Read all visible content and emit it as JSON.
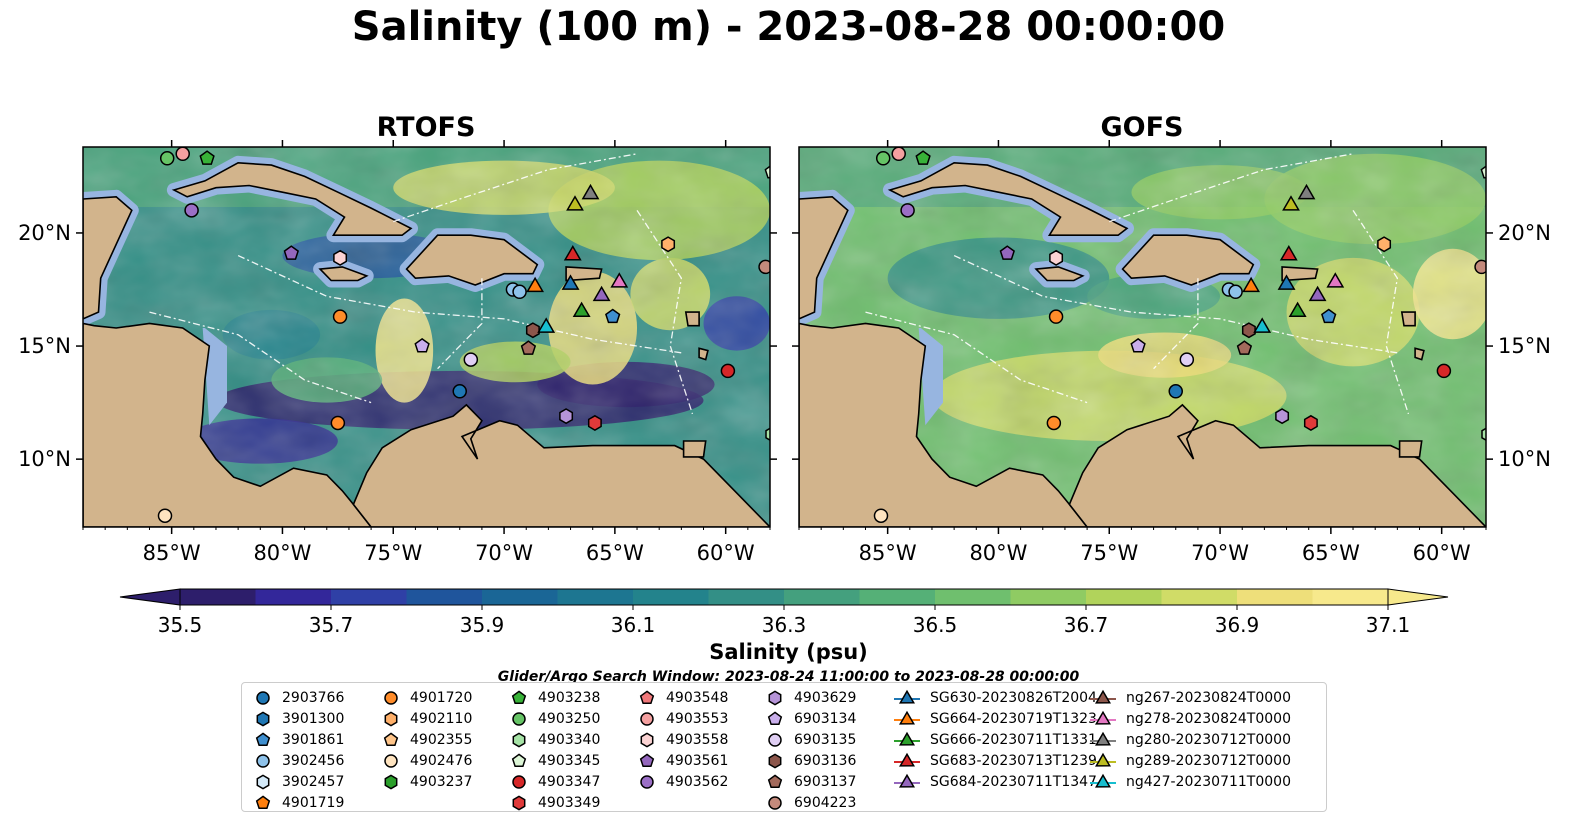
{
  "title": "Salinity (100 m) - 2023-08-28 00:00:00",
  "panels": [
    {
      "title": "RTOFS",
      "name": "rtofs"
    },
    {
      "title": "GOFS",
      "name": "gofs"
    }
  ],
  "map_extent": {
    "lon_min": -89,
    "lon_max": -58,
    "lat_min": 7,
    "lat_max": 23.8
  },
  "lon_ticks": [
    {
      "value": -85,
      "label": "85°W"
    },
    {
      "value": -80,
      "label": "80°W"
    },
    {
      "value": -75,
      "label": "75°W"
    },
    {
      "value": -70,
      "label": "70°W"
    },
    {
      "value": -65,
      "label": "65°W"
    },
    {
      "value": -60,
      "label": "60°W"
    }
  ],
  "lat_ticks": [
    {
      "value": 20,
      "label": "20°N"
    },
    {
      "value": 15,
      "label": "15°N"
    },
    {
      "value": 10,
      "label": "10°N"
    }
  ],
  "colorbar": {
    "label": "Salinity (psu)",
    "min": 35.5,
    "max": 37.1,
    "tick_labels": [
      "35.5",
      "35.7",
      "35.9",
      "36.1",
      "36.3",
      "36.5",
      "36.7",
      "36.9",
      "37.1"
    ],
    "colors": [
      "#2d1e6b",
      "#33279a",
      "#2f40a6",
      "#1f559c",
      "#1a6696",
      "#1d7691",
      "#23838c",
      "#338f86",
      "#44a07e",
      "#55b077",
      "#6fbf6e",
      "#8fcb63",
      "#b1d35b",
      "#d0dc67",
      "#eedf7a",
      "#f7e98c"
    ]
  },
  "colors": {
    "land": "#d2b48c",
    "shelf": "#97b5e0",
    "outline": "#000000"
  },
  "search_window": "Glider/Argo Search Window: 2023-08-24 11:00:00 to 2023-08-28 00:00:00",
  "legend": [
    {
      "label": "2903766",
      "marker": "circle",
      "color": "#1f77b4"
    },
    {
      "label": "3901300",
      "marker": "hexagon",
      "color": "#1f77b4"
    },
    {
      "label": "3901861",
      "marker": "pentagon",
      "color": "#3f8fcf"
    },
    {
      "label": "3902456",
      "marker": "circle",
      "color": "#8ec2ea"
    },
    {
      "label": "3902457",
      "marker": "hexagon",
      "color": "#d4eaf9"
    },
    {
      "label": "4901719",
      "marker": "pentagon",
      "color": "#ff7f0e"
    },
    {
      "label": "4901720",
      "marker": "circle",
      "color": "#ff8c2a"
    },
    {
      "label": "4902110",
      "marker": "hexagon",
      "color": "#ffb06a"
    },
    {
      "label": "4902355",
      "marker": "pentagon",
      "color": "#ffc58a"
    },
    {
      "label": "4902476",
      "marker": "circle",
      "color": "#ffe4c0"
    },
    {
      "label": "4903237",
      "marker": "hexagon",
      "color": "#2ca02c"
    },
    {
      "label": "4903238",
      "marker": "pentagon",
      "color": "#38b238"
    },
    {
      "label": "4903250",
      "marker": "circle",
      "color": "#66c466"
    },
    {
      "label": "4903340",
      "marker": "hexagon",
      "color": "#a6e3a6"
    },
    {
      "label": "4903345",
      "marker": "pentagon",
      "color": "#dcf5d6"
    },
    {
      "label": "4903347",
      "marker": "circle",
      "color": "#d62728"
    },
    {
      "label": "4903349",
      "marker": "hexagon",
      "color": "#e03a3a"
    },
    {
      "label": "4903548",
      "marker": "pentagon",
      "color": "#f0787a"
    },
    {
      "label": "4903553",
      "marker": "circle",
      "color": "#f4a0a0"
    },
    {
      "label": "4903558",
      "marker": "hexagon",
      "color": "#fbd3d3"
    },
    {
      "label": "4903561",
      "marker": "pentagon",
      "color": "#9467bd"
    },
    {
      "label": "4903562",
      "marker": "circle",
      "color": "#9b6fc6"
    },
    {
      "label": "4903629",
      "marker": "hexagon",
      "color": "#b694d8"
    },
    {
      "label": "6903134",
      "marker": "pentagon",
      "color": "#c9aeeb"
    },
    {
      "label": "6903135",
      "marker": "circle",
      "color": "#e0cff4"
    },
    {
      "label": "6903136",
      "marker": "hexagon",
      "color": "#8c564b"
    },
    {
      "label": "6903137",
      "marker": "pentagon",
      "color": "#a36a5c"
    },
    {
      "label": "6904223",
      "marker": "circle",
      "color": "#c48a7c"
    },
    {
      "label": "SG630-20230826T2004",
      "marker": "triangle",
      "color": "#1f77b4"
    },
    {
      "label": "SG664-20230719T1323",
      "marker": "triangle",
      "color": "#ff7f0e"
    },
    {
      "label": "SG666-20230711T1331",
      "marker": "triangle",
      "color": "#2ca02c"
    },
    {
      "label": "SG683-20230713T1239",
      "marker": "triangle",
      "color": "#d62728"
    },
    {
      "label": "SG684-20230711T1347",
      "marker": "triangle",
      "color": "#9467bd"
    },
    {
      "label": "ng267-20230824T0000",
      "marker": "triangle",
      "color": "#8c564b"
    },
    {
      "label": "ng278-20230824T0000",
      "marker": "triangle",
      "color": "#e377c2"
    },
    {
      "label": "ng280-20230712T0000",
      "marker": "triangle",
      "color": "#7f7f7f"
    },
    {
      "label": "ng289-20230712T0000",
      "marker": "triangle",
      "color": "#bcbd22"
    },
    {
      "label": "ng427-20230711T0000",
      "marker": "triangle",
      "color": "#17becf"
    }
  ],
  "points": [
    {
      "id": "4903250",
      "lon": -85.2,
      "lat": 23.3
    },
    {
      "id": "4903553",
      "lon": -84.5,
      "lat": 23.5
    },
    {
      "id": "4903238",
      "lon": -83.4,
      "lat": 23.3
    },
    {
      "id": "4903562",
      "lon": -84.1,
      "lat": 21.0
    },
    {
      "id": "4903561",
      "lon": -79.6,
      "lat": 19.1
    },
    {
      "id": "4903558",
      "lon": -77.4,
      "lat": 18.9
    },
    {
      "id": "4901720",
      "lon": -77.4,
      "lat": 16.3
    },
    {
      "id": "6903134",
      "lon": -73.7,
      "lat": 15.0
    },
    {
      "id": "6903135",
      "lon": -71.5,
      "lat": 14.4
    },
    {
      "id": "2903766",
      "lon": -72.0,
      "lat": 13.0
    },
    {
      "id": "4901720",
      "lon": -77.5,
      "lat": 11.6
    },
    {
      "id": "3902456",
      "lon": -69.6,
      "lat": 17.5
    },
    {
      "id": "3902456",
      "lon": -69.3,
      "lat": 17.4
    },
    {
      "id": "6903136",
      "lon": -68.7,
      "lat": 15.7
    },
    {
      "id": "6903137",
      "lon": -68.9,
      "lat": 14.9
    },
    {
      "id": "4903629",
      "lon": -67.2,
      "lat": 11.9
    },
    {
      "id": "4903349",
      "lon": -65.9,
      "lat": 11.6
    },
    {
      "id": "4903347",
      "lon": -59.9,
      "lat": 13.9
    },
    {
      "id": "3901861",
      "lon": -65.1,
      "lat": 16.3
    },
    {
      "id": "4902110",
      "lon": -62.6,
      "lat": 19.5
    },
    {
      "id": "6904223",
      "lon": -58.2,
      "lat": 18.5
    },
    {
      "id": "4903340",
      "lon": -57.9,
      "lat": 11.1
    },
    {
      "id": "4903345",
      "lon": -57.9,
      "lat": 22.7
    },
    {
      "id": "4902476",
      "lon": -85.3,
      "lat": 7.5
    }
  ],
  "rtofs_gliders": [
    {
      "id": "SG664-20230719T1323",
      "lon": -68.6,
      "lat": 17.7
    },
    {
      "id": "SG630-20230826T2004",
      "lon": -67.0,
      "lat": 17.8
    },
    {
      "id": "SG683-20230713T1239",
      "lon": -66.9,
      "lat": 19.1
    },
    {
      "id": "SG666-20230711T1331",
      "lon": -66.5,
      "lat": 16.6
    },
    {
      "id": "SG684-20230711T1347",
      "lon": -65.6,
      "lat": 17.3
    },
    {
      "id": "ng278-20230824T0000",
      "lon": -64.8,
      "lat": 17.9
    },
    {
      "id": "ng289-20230712T0000",
      "lon": -66.8,
      "lat": 21.3
    },
    {
      "id": "ng280-20230712T0000",
      "lon": -66.1,
      "lat": 21.8
    },
    {
      "id": "ng427-20230711T0000",
      "lon": -68.1,
      "lat": 15.9
    }
  ]
}
